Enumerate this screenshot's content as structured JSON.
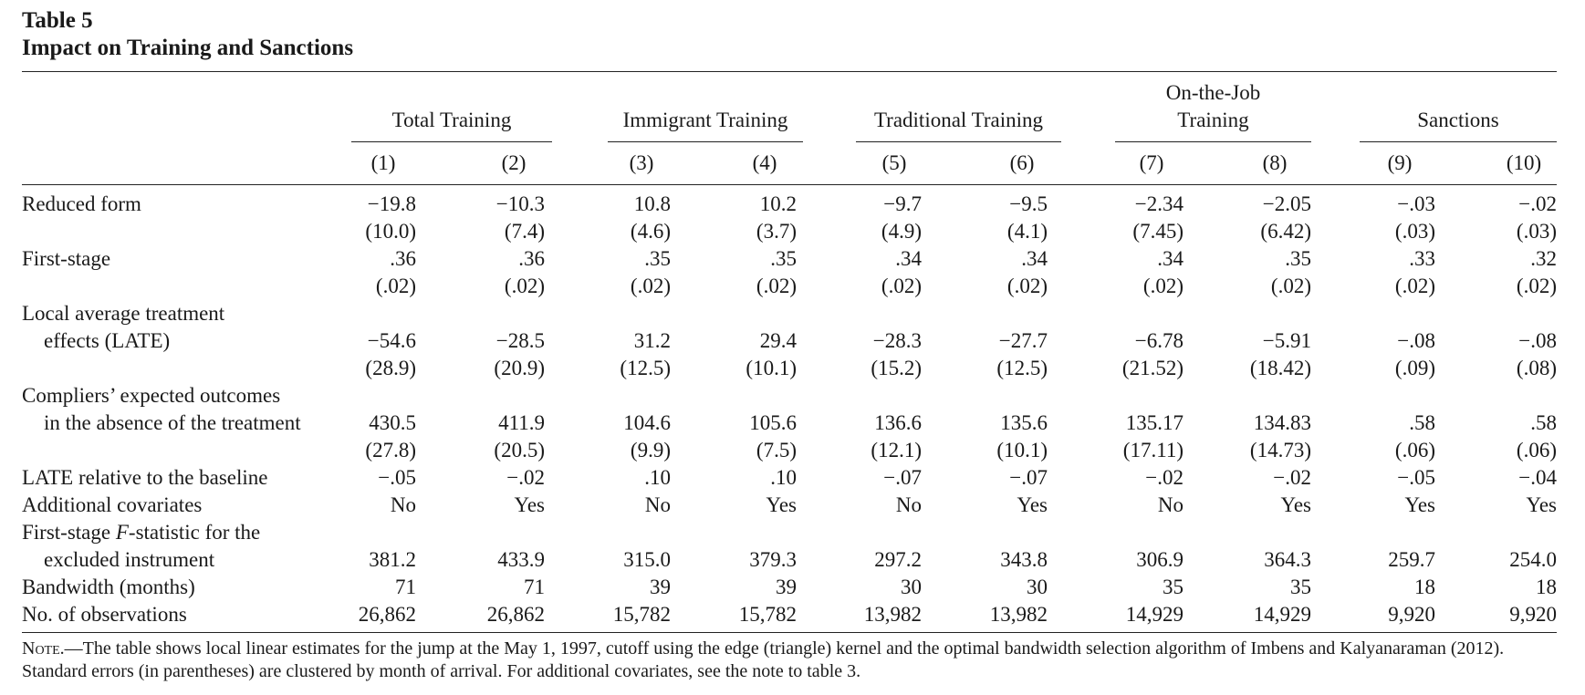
{
  "table": {
    "label": "Table 5",
    "title": "Impact on Training and Sanctions",
    "column_groups": [
      {
        "label": "Total Training",
        "line2": ""
      },
      {
        "label": "Immigrant Training",
        "line2": ""
      },
      {
        "label": "Traditional Training",
        "line2": ""
      },
      {
        "label": "On-the-Job",
        "line2": "Training"
      },
      {
        "label": "Sanctions",
        "line2": ""
      }
    ],
    "column_numbers": [
      "(1)",
      "(2)",
      "(3)",
      "(4)",
      "(5)",
      "(6)",
      "(7)",
      "(8)",
      "(9)",
      "(10)"
    ],
    "rows": [
      {
        "stub": [
          "Reduced form"
        ],
        "values": [
          "−19.8",
          "−10.3",
          "10.8",
          "10.2",
          "−9.7",
          "−9.5",
          "−2.34",
          "−2.05",
          "−.03",
          "−.02"
        ],
        "se": [
          "(10.0)",
          "(7.4)",
          "(4.6)",
          "(3.7)",
          "(4.9)",
          "(4.1)",
          "(7.45)",
          "(6.42)",
          "(.03)",
          "(.03)"
        ]
      },
      {
        "stub": [
          "First-stage"
        ],
        "values": [
          ".36",
          ".36",
          ".35",
          ".35",
          ".34",
          ".34",
          ".34",
          ".35",
          ".33",
          ".32"
        ],
        "se": [
          "(.02)",
          "(.02)",
          "(.02)",
          "(.02)",
          "(.02)",
          "(.02)",
          "(.02)",
          "(.02)",
          "(.02)",
          "(.02)"
        ]
      },
      {
        "stub": [
          "Local average treatment",
          "effects (LATE)"
        ],
        "values": [
          "−54.6",
          "−28.5",
          "31.2",
          "29.4",
          "−28.3",
          "−27.7",
          "−6.78",
          "−5.91",
          "−.08",
          "−.08"
        ],
        "se": [
          "(28.9)",
          "(20.9)",
          "(12.5)",
          "(10.1)",
          "(15.2)",
          "(12.5)",
          "(21.52)",
          "(18.42)",
          "(.09)",
          "(.08)"
        ]
      },
      {
        "stub": [
          "Compliers’ expected outcomes",
          "in the absence of the treatment"
        ],
        "values": [
          "430.5",
          "411.9",
          "104.6",
          "105.6",
          "136.6",
          "135.6",
          "135.17",
          "134.83",
          ".58",
          ".58"
        ],
        "se": [
          "(27.8)",
          "(20.5)",
          "(9.9)",
          "(7.5)",
          "(12.1)",
          "(10.1)",
          "(17.11)",
          "(14.73)",
          "(.06)",
          "(.06)"
        ]
      },
      {
        "stub": [
          "LATE relative to the baseline"
        ],
        "values": [
          "−.05",
          "−.02",
          ".10",
          ".10",
          "−.07",
          "−.07",
          "−.02",
          "−.02",
          "−.05",
          "−.04"
        ]
      },
      {
        "stub": [
          "Additional covariates"
        ],
        "values": [
          "No",
          "Yes",
          "No",
          "Yes",
          "No",
          "Yes",
          "No",
          "Yes",
          "Yes",
          "Yes"
        ]
      },
      {
        "stub_parts": [
          "First-stage ",
          "F",
          "-statistic for the"
        ],
        "stub": [
          "",
          "excluded instrument"
        ],
        "values": [
          "381.2",
          "433.9",
          "315.0",
          "379.3",
          "297.2",
          "343.8",
          "306.9",
          "364.3",
          "259.7",
          "254.0"
        ]
      },
      {
        "stub": [
          "Bandwidth (months)"
        ],
        "values": [
          "71",
          "71",
          "39",
          "39",
          "30",
          "30",
          "35",
          "35",
          "18",
          "18"
        ]
      },
      {
        "stub": [
          "No. of observations"
        ],
        "values": [
          "26,862",
          "26,862",
          "15,782",
          "15,782",
          "13,982",
          "13,982",
          "14,929",
          "14,929",
          "9,920",
          "9,920"
        ]
      }
    ],
    "note_lead": "Note.",
    "note_text": "—The table shows local linear estimates for the jump at the May 1, 1997, cutoff using the edge (triangle) kernel and the optimal bandwidth selection algorithm of Imbens and Kalyanaraman (2012). Standard errors (in parentheses) are clustered by month of arrival. For additional covariates, see the note to table 3."
  }
}
